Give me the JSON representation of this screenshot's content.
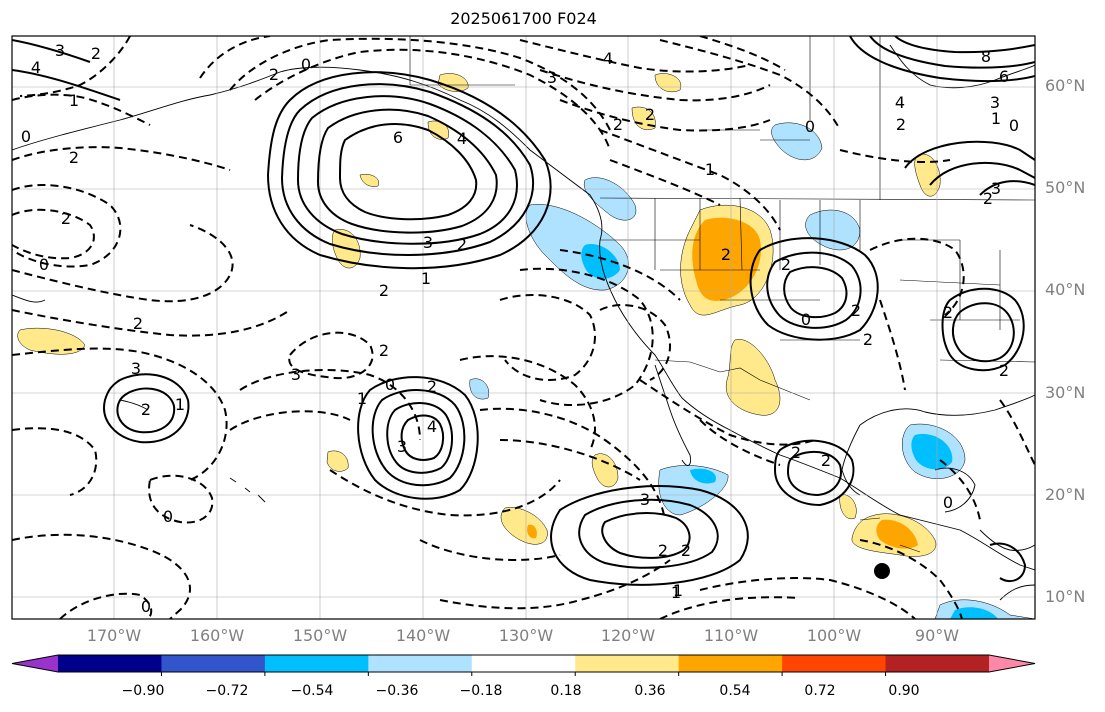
{
  "title": "2025061700 F024",
  "lat_labels": [
    "60°N",
    "50°N",
    "40°N",
    "30°N",
    "20°N",
    "10°N"
  ],
  "lon_labels": [
    "170°W",
    "160°W",
    "150°W",
    "140°W",
    "130°W",
    "120°W",
    "110°W",
    "100°W",
    "90°W"
  ],
  "colorbar": {
    "colors": [
      "#9933cc",
      "#00008b",
      "#3355cc",
      "#00bfff",
      "#aee2ff",
      "#ffffff",
      "#ffe98a",
      "#ffa500",
      "#ff4500",
      "#b22222",
      "#ff88aa"
    ],
    "tick_labels": [
      "−0.90",
      "−0.72",
      "−0.54",
      "−0.36",
      "−0.18",
      "0.18",
      "0.36",
      "0.54",
      "0.72",
      "0.90"
    ]
  },
  "contour_labels": [
    "4",
    "3",
    "2",
    "0",
    "2",
    "1",
    "2",
    "0",
    "6",
    "4",
    "3",
    "2",
    "1",
    "2",
    "2",
    "3",
    "4",
    "2",
    "1",
    "2",
    "3",
    "2",
    "1",
    "0",
    "3",
    "2",
    "2",
    "0",
    "2",
    "1",
    "0",
    "3",
    "4",
    "3",
    "2",
    "2",
    "0",
    "2",
    "2",
    "2",
    "1",
    "8",
    "6",
    "4",
    "3",
    "2",
    "1",
    "0",
    "3",
    "2",
    "0",
    "2",
    "2",
    "2",
    "0",
    "2",
    "2",
    "1",
    "0"
  ]
}
